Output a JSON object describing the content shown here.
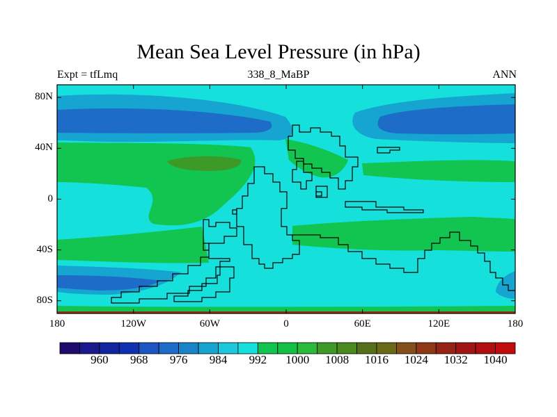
{
  "title": "Mean Sea Level Pressure (in hPa)",
  "left_label": "Expt = tfLmq",
  "center_label": "338_8_MaBP",
  "right_label": "ANN",
  "y_ticks": [
    {
      "label": "80N",
      "lat": 80
    },
    {
      "label": "40N",
      "lat": 40
    },
    {
      "label": "0",
      "lat": 0
    },
    {
      "label": "40S",
      "lat": -40
    },
    {
      "label": "80S",
      "lat": -80
    }
  ],
  "x_ticks": [
    {
      "label": "180",
      "lon": -180
    },
    {
      "label": "120W",
      "lon": -120
    },
    {
      "label": "60W",
      "lon": -60
    },
    {
      "label": "0",
      "lon": 0
    },
    {
      "label": "60E",
      "lon": 60
    },
    {
      "label": "120E",
      "lon": 120
    },
    {
      "label": "180",
      "lon": 180
    }
  ],
  "colorbar": {
    "colors": [
      "#1f0a6e",
      "#1a1a8c",
      "#12249e",
      "#1030b2",
      "#1c56c0",
      "#1c6cc8",
      "#1a84c8",
      "#16a4d0",
      "#1ec8dc",
      "#16e0dc",
      "#12c450",
      "#12c046",
      "#2bbb3a",
      "#3e9a26",
      "#4a8a1e",
      "#56701a",
      "#6a6a16",
      "#84501a",
      "#8e3816",
      "#962414",
      "#a01414",
      "#b00e10",
      "#c00c0c"
    ],
    "labels": [
      {
        "text": "960",
        "index": 1
      },
      {
        "text": "968",
        "index": 3
      },
      {
        "text": "976",
        "index": 5
      },
      {
        "text": "984",
        "index": 7
      },
      {
        "text": "992",
        "index": 9
      },
      {
        "text": "1000",
        "index": 11
      },
      {
        "text": "1008",
        "index": 13
      },
      {
        "text": "1016",
        "index": 15
      },
      {
        "text": "1024",
        "index": 17
      },
      {
        "text": "1032",
        "index": 19
      },
      {
        "text": "1040",
        "index": 21
      }
    ]
  },
  "colors": {
    "background_cyan": "#16e0dc",
    "light_blue": "#16a4d0",
    "mid_blue": "#1c6cc8",
    "green": "#12c450",
    "dark_green": "#3e9a26",
    "brown_edge": "#8e3816",
    "coast": "#000000"
  }
}
